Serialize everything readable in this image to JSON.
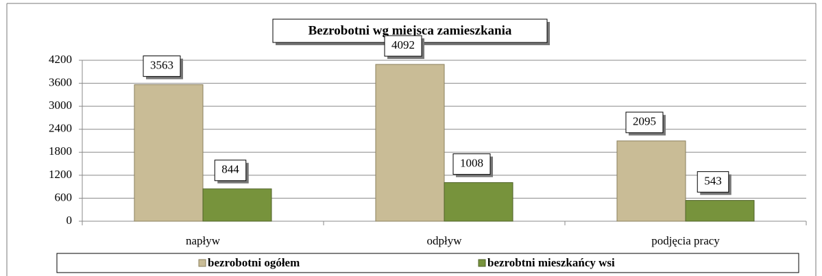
{
  "chart_data": {
    "type": "bar",
    "title": "Bezrobotni wg miejsca zamieszkania",
    "categories": [
      "napływ",
      "odpływ",
      "podjęcia  pracy"
    ],
    "series": [
      {
        "name": "bezrobotni ogółem",
        "color": "#c9bc96",
        "values": [
          3563,
          4092,
          2095
        ]
      },
      {
        "name": "bezrobtni mieszkańcy wsi",
        "color": "#77933c",
        "values": [
          844,
          1008,
          543
        ]
      }
    ],
    "ylim": [
      0,
      4200
    ],
    "yticks": [
      0,
      600,
      1200,
      1800,
      2400,
      3000,
      3600,
      4200
    ],
    "grid": true,
    "legend": "bottom"
  }
}
